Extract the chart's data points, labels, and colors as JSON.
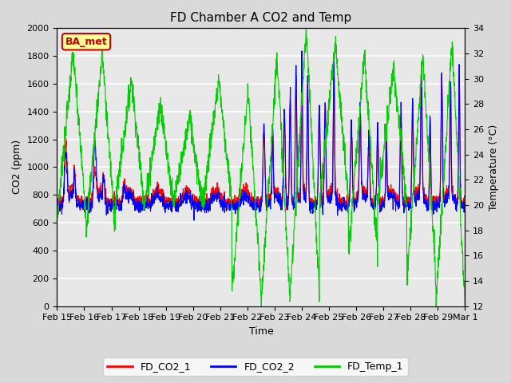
{
  "title": "FD Chamber A CO2 and Temp",
  "xlabel": "Time",
  "ylabel_left": "CO2 (ppm)",
  "ylabel_right": "Temperature (°C)",
  "ylim_left": [
    0,
    2000
  ],
  "ylim_right": [
    12,
    34
  ],
  "yticks_left": [
    0,
    200,
    400,
    600,
    800,
    1000,
    1200,
    1400,
    1600,
    1800,
    2000
  ],
  "yticks_right": [
    12,
    14,
    16,
    18,
    20,
    22,
    24,
    26,
    28,
    30,
    32,
    34
  ],
  "xtick_labels": [
    "Feb 15",
    "Feb 16",
    "Feb 17",
    "Feb 18",
    "Feb 19",
    "Feb 20",
    "Feb 21",
    "Feb 22",
    "Feb 23",
    "Feb 24",
    "Feb 25",
    "Feb 26",
    "Feb 27",
    "Feb 28",
    "Feb 29",
    "Mar 1"
  ],
  "legend_labels": [
    "FD_CO2_1",
    "FD_CO2_2",
    "FD_Temp_1"
  ],
  "legend_colors": [
    "#ff0000",
    "#0000ff",
    "#00cc00"
  ],
  "box_label": "BA_met",
  "box_facecolor": "#ffff99",
  "box_edgecolor": "#cc0000",
  "background_color": "#d9d9d9",
  "plot_background": "#e8e8e8",
  "grid_color": "#ffffff",
  "title_fontsize": 11,
  "axis_fontsize": 9,
  "tick_fontsize": 8,
  "legend_fontsize": 9,
  "linewidth": 0.8,
  "n_points": 2000
}
